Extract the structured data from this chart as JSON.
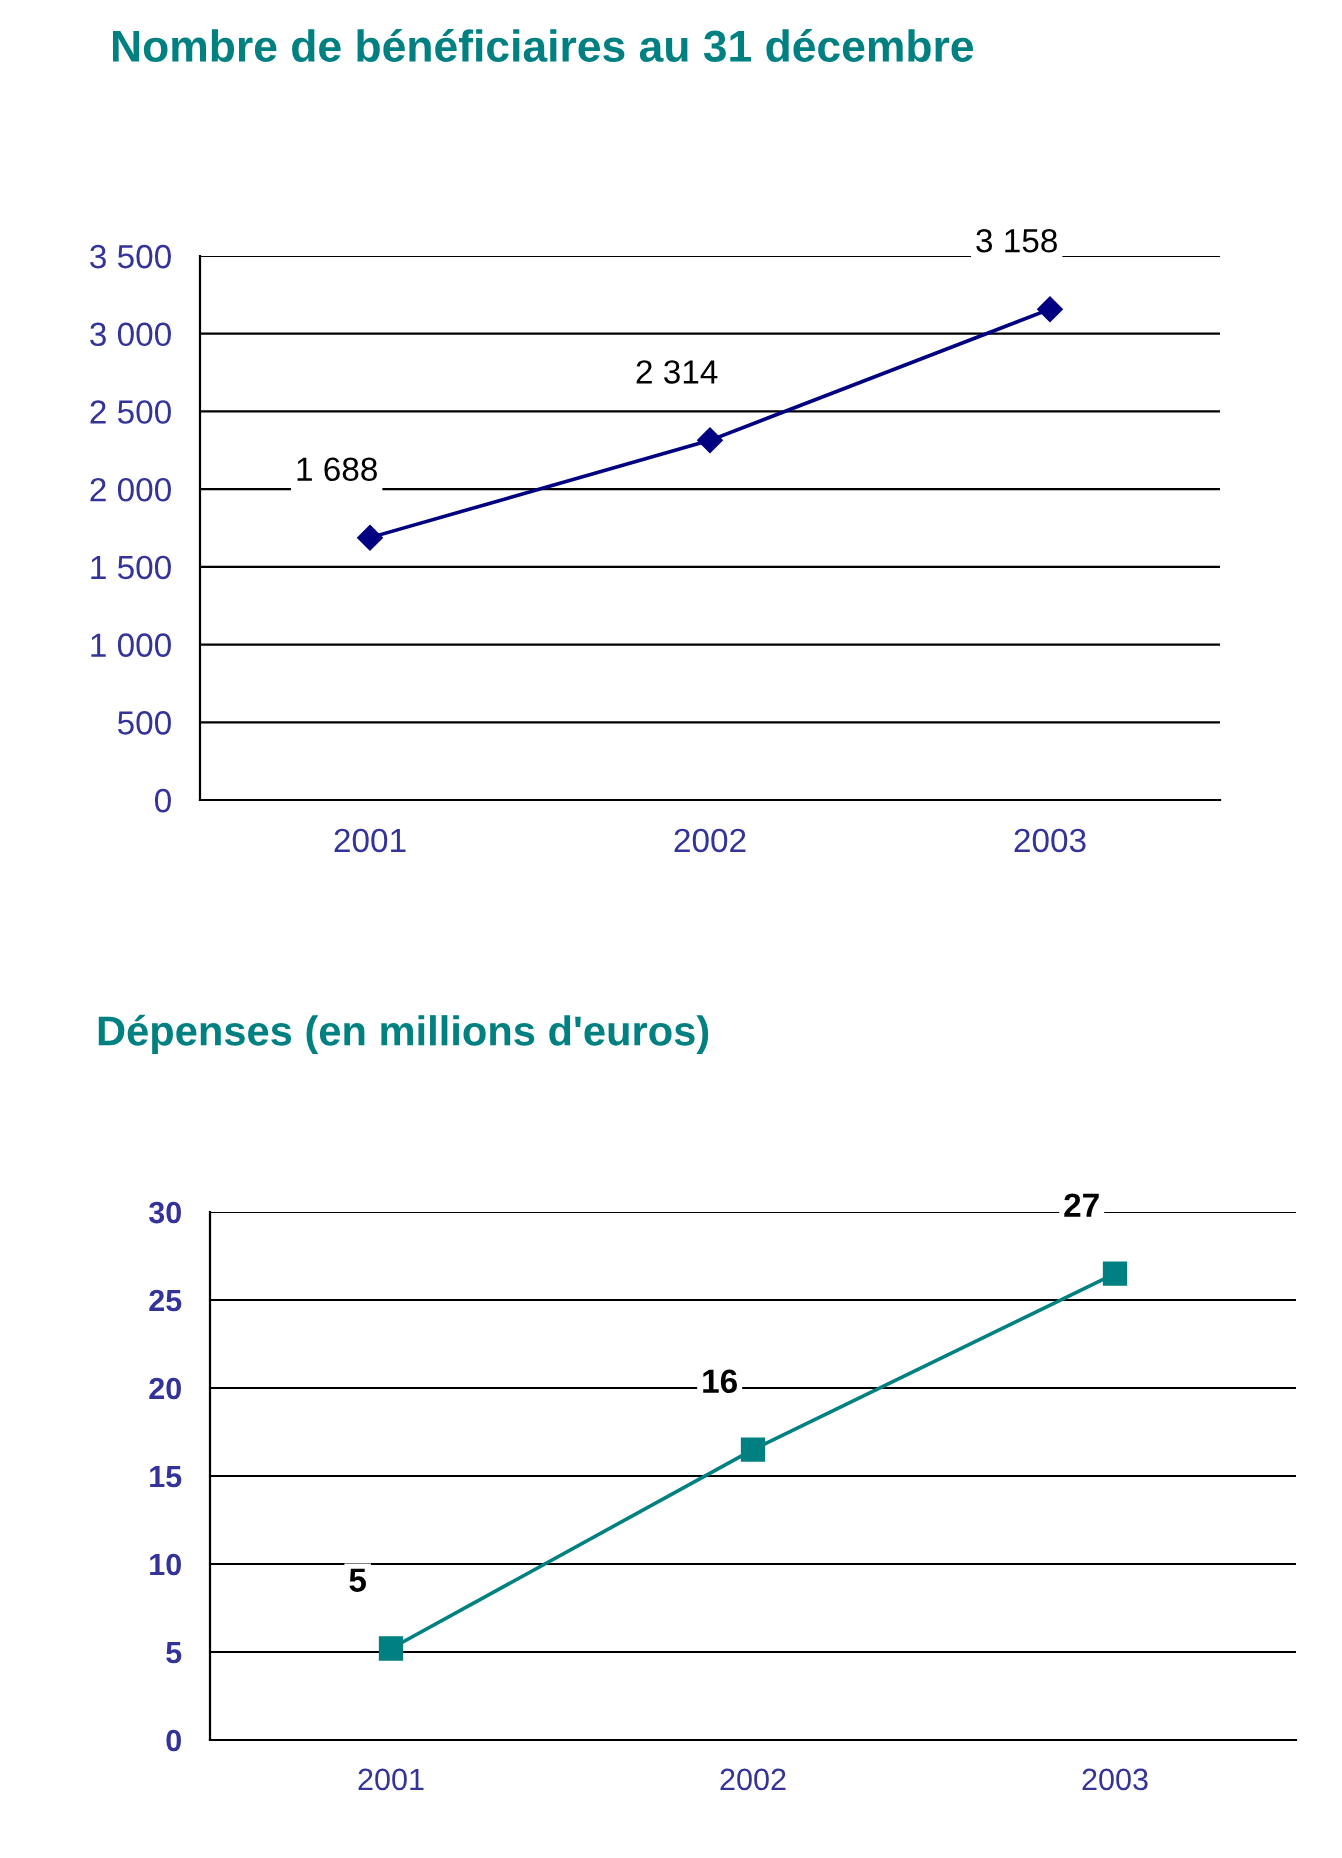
{
  "chart_data": [
    {
      "type": "line",
      "title": "Nombre de bénéficiaires au 31 décembre",
      "categories": [
        "2001",
        "2002",
        "2003"
      ],
      "series": [
        {
          "color": "#000080",
          "values": [
            1688,
            2314,
            3158
          ],
          "value_labels": [
            "1 688",
            "2 314",
            "3 158"
          ]
        }
      ],
      "ylim": [
        0,
        3500
      ],
      "yticks": [
        0,
        500,
        {
          "value": 1000,
          "label": "1 000"
        },
        {
          "value": 1500,
          "label": "1 500"
        },
        {
          "value": 2000,
          "label": "2 000"
        },
        {
          "value": 2500,
          "label": "2 500"
        },
        {
          "value": 3000,
          "label": "3 000"
        },
        {
          "value": 3500,
          "label": "3 500"
        }
      ],
      "grid": "y",
      "legend": false,
      "marker": "diamond",
      "line_style": "solid"
    },
    {
      "type": "line",
      "title": "Dépenses (en millions d'euros)",
      "categories": [
        "2001",
        "2002",
        "2003"
      ],
      "series": [
        {
          "color": "#008080",
          "values": [
            5.2,
            16.5,
            26.5
          ],
          "value_labels": [
            "5",
            "16",
            "27"
          ]
        }
      ],
      "ylim": [
        0,
        30
      ],
      "yticks": [
        0,
        5,
        10,
        15,
        20,
        25,
        30
      ],
      "grid": "y",
      "legend": false,
      "marker": "square",
      "line_style": "solid"
    }
  ]
}
